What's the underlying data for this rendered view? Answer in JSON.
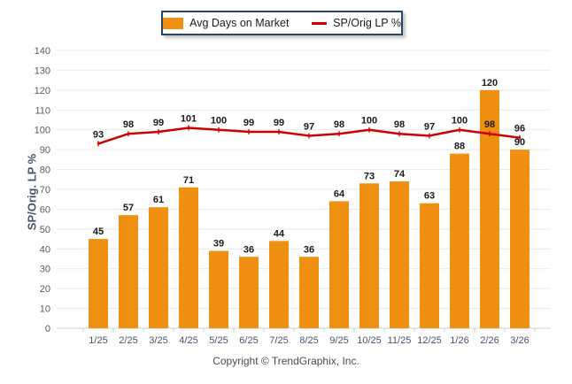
{
  "legend": {
    "bar_label": "Avg Days on Market",
    "line_label": "SP/Orig LP %"
  },
  "y_axis": {
    "title": "SP/Orig. LP %"
  },
  "footer": {
    "copyright": "Copyright © TrendGraphix, Inc."
  },
  "colors": {
    "bar": "#F09013",
    "line": "#CC0000",
    "grid": "#E9E9E9",
    "axis": "#CFCFCF",
    "y_tick_label": "#595959",
    "x_tick_label": "#44546A",
    "value_label": "#1A1A1A",
    "legend_border": "#24476B"
  },
  "chart_data": {
    "type": "combo",
    "categories": [
      "1/25",
      "2/25",
      "3/25",
      "4/25",
      "5/25",
      "6/25",
      "7/25",
      "8/25",
      "9/25",
      "10/25",
      "11/25",
      "12/25",
      "1/26",
      "2/26",
      "3/26"
    ],
    "series": [
      {
        "name": "Avg Days on Market",
        "type": "bar",
        "color": "#F09013",
        "values": [
          45,
          57,
          61,
          71,
          39,
          36,
          44,
          36,
          64,
          73,
          74,
          63,
          88,
          120,
          90
        ]
      },
      {
        "name": "SP/Orig LP %",
        "type": "line",
        "color": "#CC0000",
        "values": [
          93,
          98,
          99,
          101,
          100,
          99,
          99,
          97,
          98,
          100,
          98,
          97,
          100,
          98,
          96
        ]
      }
    ],
    "title": "",
    "xlabel": "",
    "ylabel": "SP/Orig. LP %",
    "ylim": [
      0,
      140
    ],
    "ytick_step": 10,
    "grid": true,
    "legend_position": "top-center",
    "value_labels": true
  }
}
